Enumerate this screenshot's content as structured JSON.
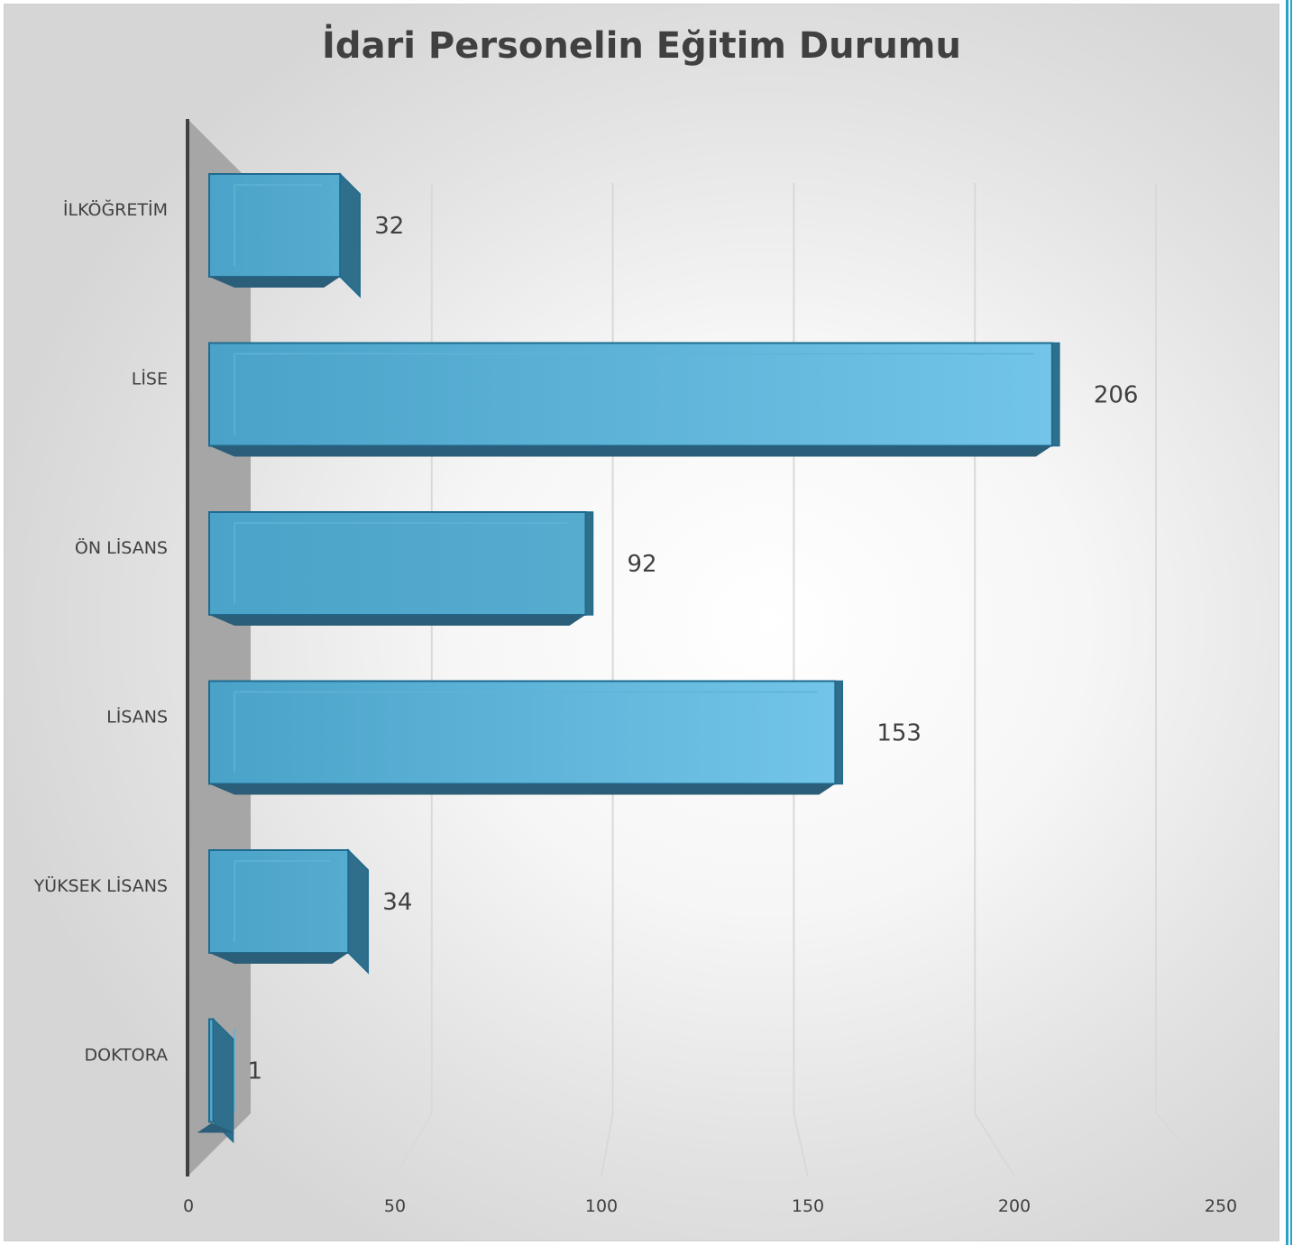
{
  "chart_data": {
    "type": "bar",
    "orientation": "horizontal",
    "style": "3d",
    "title": "İdari Personelin Eğitim Durumu",
    "xlabel": "",
    "ylabel": "",
    "categories": [
      "İLKÖĞRETİM",
      "LİSE",
      "ÖN LİSANS",
      "LİSANS",
      "YÜKSEK LİSANS",
      "DOKTORA"
    ],
    "values": [
      32,
      206,
      92,
      153,
      34,
      1
    ],
    "data_labels": [
      "32",
      "206",
      "92",
      "153",
      "34",
      "1"
    ],
    "xlim": [
      0,
      250
    ],
    "x_ticks": [
      0,
      50,
      100,
      150,
      200,
      250
    ],
    "x_tick_labels": [
      "0",
      "50",
      "100",
      "150",
      "200",
      "250"
    ],
    "grid": true,
    "legend": "none",
    "colors": {
      "bar_front": "#4ea6cc",
      "bar_front_light": "#74c6e8",
      "bar_top": "#3f8fb3",
      "bar_side": "#2f6f8c",
      "bar_edge": "#1f6b8f",
      "floor": "#a6a6a6",
      "gridline": "#d9d9d9",
      "axis": "#404040"
    }
  }
}
